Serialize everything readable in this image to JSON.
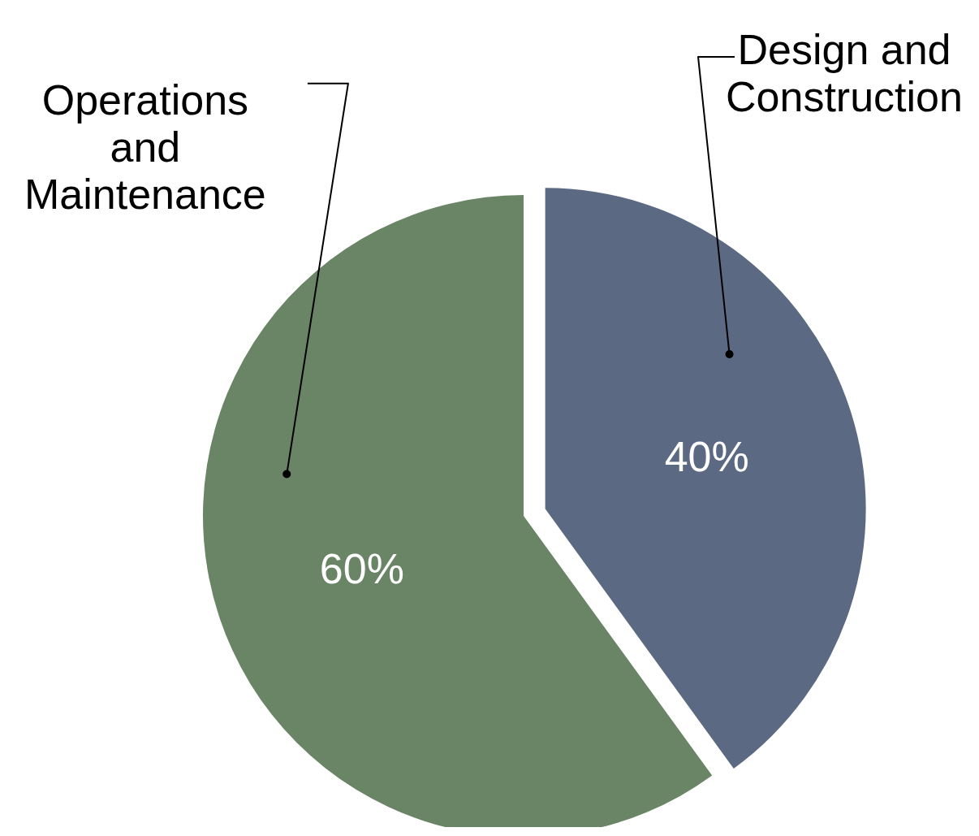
{
  "chart_data": {
    "type": "pie",
    "categories": [
      "Design and Construction",
      "Operations and Maintenance"
    ],
    "values": [
      40,
      60
    ],
    "colors": [
      "#5b6a82",
      "#6a8466"
    ],
    "value_labels": [
      "40%",
      "60%"
    ]
  }
}
